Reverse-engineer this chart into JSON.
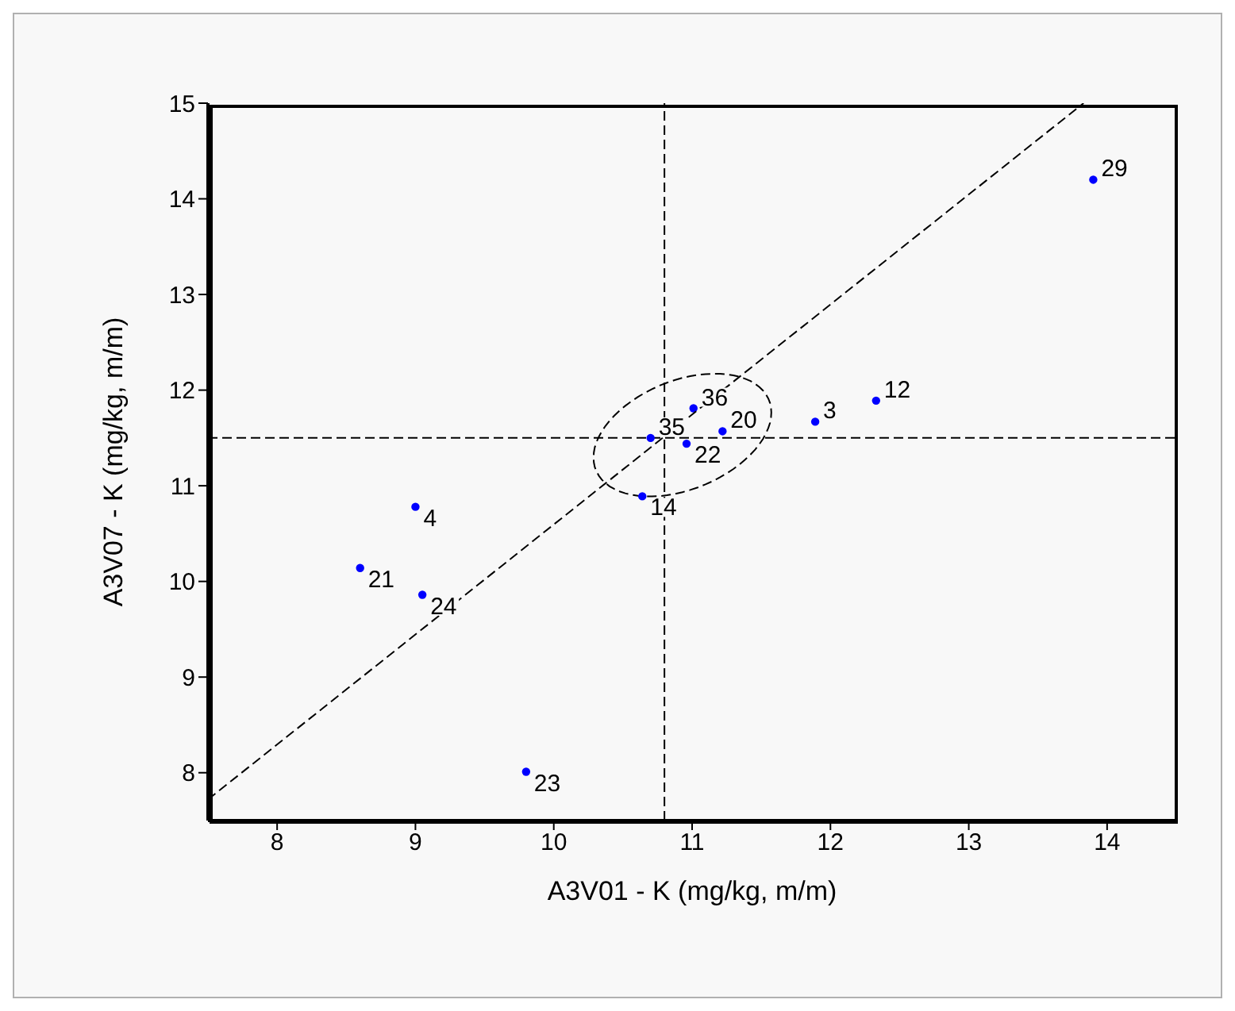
{
  "chart_data": {
    "type": "scatter",
    "xlabel": "A3V01 - K (mg/kg, m/m)",
    "ylabel": "A3V07 - K (mg/kg, m/m)",
    "xlim": [
      7.5,
      14.5
    ],
    "xticks": [
      8,
      9,
      10,
      11,
      12,
      13,
      14
    ],
    "ylim": [
      7.5,
      15
    ],
    "yticks": [
      8,
      9,
      10,
      11,
      12,
      13,
      14,
      15
    ],
    "grid": false,
    "legend": false,
    "marker": "circle",
    "x": [
      13.9,
      12.33,
      11.89,
      11.01,
      11.22,
      10.7,
      10.96,
      10.64,
      9.0,
      8.6,
      9.05,
      9.8
    ],
    "series": [
      {
        "color": "#0000ff",
        "values": [
          14.2,
          11.89,
          11.67,
          11.81,
          11.57,
          11.5,
          11.44,
          10.89,
          10.78,
          10.14,
          9.86,
          8.01
        ]
      },
      {
        "type": "line",
        "color": "#000000",
        "line_style": "dashed",
        "marker": "none",
        "x": [
          7.5,
          13.83
        ],
        "values": [
          7.72,
          15
        ]
      }
    ],
    "ref_lines": [
      {
        "axis": "x",
        "value": 10.8,
        "color": "#000000",
        "line_style": "dashed"
      },
      {
        "axis": "y",
        "value": 11.5,
        "color": "#000000",
        "line_style": "dashed"
      }
    ],
    "annotations": [
      {
        "text": "29",
        "x": 13.9,
        "y": 14.2
      },
      {
        "text": "12",
        "x": 12.33,
        "y": 11.89
      },
      {
        "text": "3",
        "x": 11.89,
        "y": 11.67
      },
      {
        "text": "36",
        "x": 11.01,
        "y": 11.81
      },
      {
        "text": "20",
        "x": 11.22,
        "y": 11.57
      },
      {
        "text": "35",
        "x": 10.7,
        "y": 11.5
      },
      {
        "text": "22",
        "x": 10.96,
        "y": 11.44
      },
      {
        "text": "14",
        "x": 10.64,
        "y": 10.89
      },
      {
        "text": "4",
        "x": 9.0,
        "y": 10.78
      },
      {
        "text": "21",
        "x": 8.6,
        "y": 10.14
      },
      {
        "text": "24",
        "x": 9.05,
        "y": 9.86
      },
      {
        "text": "23",
        "x": 9.8,
        "y": 8.01
      }
    ]
  }
}
